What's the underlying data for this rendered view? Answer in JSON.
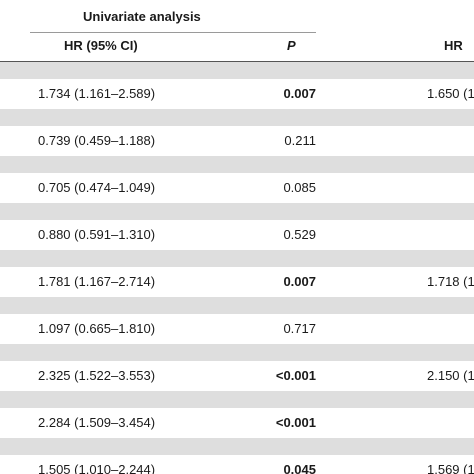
{
  "header": {
    "group_title": "Univariate analysis",
    "col_hr": "HR (95% CI)",
    "col_p": "P",
    "col_hr_multi": "HR"
  },
  "rows": [
    {
      "hr": "1.734 (1.161–2.589)",
      "p": "0.007",
      "p_bold": true,
      "hr2": "1.650 (1"
    },
    {
      "hr": "0.739 (0.459–1.188)",
      "p": "0.211",
      "p_bold": false,
      "hr2": ""
    },
    {
      "hr": "0.705 (0.474–1.049)",
      "p": "0.085",
      "p_bold": false,
      "hr2": ""
    },
    {
      "hr": "0.880 (0.591–1.310)",
      "p": "0.529",
      "p_bold": false,
      "hr2": ""
    },
    {
      "hr": "1.781 (1.167–2.714)",
      "p": "0.007",
      "p_bold": true,
      "hr2": "1.718 (1"
    },
    {
      "hr": "1.097 (0.665–1.810)",
      "p": "0.717",
      "p_bold": false,
      "hr2": ""
    },
    {
      "hr": "2.325 (1.522–3.553)",
      "p": "<0.001",
      "p_bold": true,
      "hr2": "2.150 (1"
    },
    {
      "hr": "2.284 (1.509–3.454)",
      "p": "<0.001",
      "p_bold": true,
      "hr2": ""
    },
    {
      "hr": "1.505 (1.010–2.244)",
      "p": "0.045",
      "p_bold": true,
      "hr2": "1.569 (1"
    }
  ]
}
